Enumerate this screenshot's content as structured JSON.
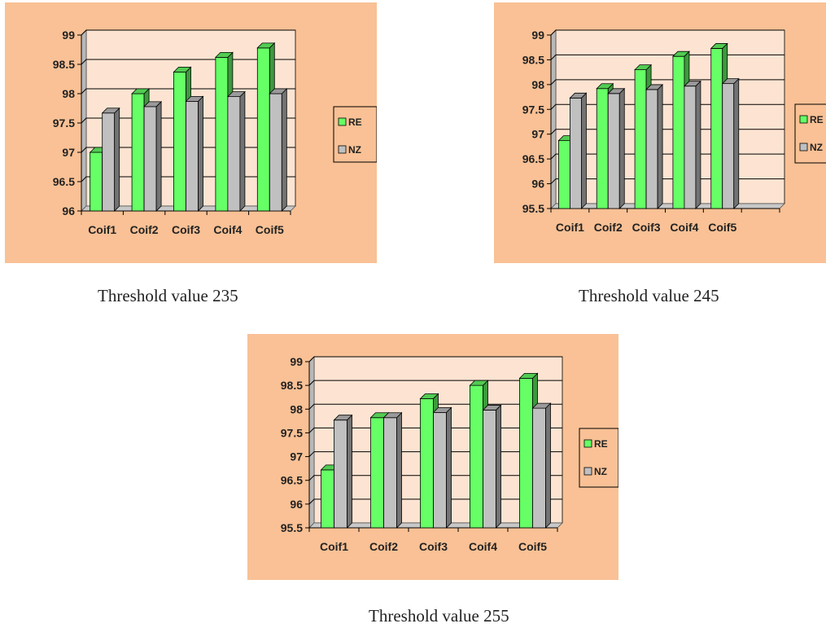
{
  "captions": [
    "Threshold value 235",
    "Threshold value 245",
    "Threshold value 255"
  ],
  "colors": {
    "panel_bg": "#f9c195",
    "plot_bg": "#fde4d2",
    "plot_side": "#b8b8b8",
    "plot_floor": "#c8c8c8",
    "grid": "#000000",
    "RE": "#66ff66",
    "NZ": "#c0c0c0"
  },
  "chart_data": [
    {
      "type": "bar",
      "categories": [
        "Coif1",
        "Coif2",
        "Coif3",
        "Coif4",
        "Coif5"
      ],
      "series": [
        {
          "name": "RE",
          "values": [
            97.0,
            98.0,
            98.37,
            98.62,
            98.78
          ]
        },
        {
          "name": "NZ",
          "values": [
            97.67,
            97.78,
            97.87,
            97.95,
            98.0
          ]
        }
      ],
      "ylim": [
        96,
        99
      ],
      "yticks": [
        "96",
        "96.5",
        "97",
        "97.5",
        "98",
        "98.5",
        "99"
      ],
      "grid": true,
      "legend": "right"
    },
    {
      "type": "bar",
      "categories": [
        "Coif1",
        "Coif2",
        "Coif3",
        "Coif4",
        "Coif5"
      ],
      "series": [
        {
          "name": "RE",
          "values": [
            96.87,
            97.92,
            98.3,
            98.57,
            98.73
          ]
        },
        {
          "name": "NZ",
          "values": [
            97.73,
            97.82,
            97.9,
            97.97,
            98.02
          ]
        }
      ],
      "ylim": [
        95.5,
        99
      ],
      "yticks": [
        "95.5",
        "96",
        "96.5",
        "97",
        "97.5",
        "98",
        "98.5",
        "99"
      ],
      "grid": true,
      "legend": "right"
    },
    {
      "type": "bar",
      "categories": [
        "Coif1",
        "Coif2",
        "Coif3",
        "Coif4",
        "Coif5"
      ],
      "series": [
        {
          "name": "RE",
          "values": [
            96.72,
            97.82,
            98.22,
            98.5,
            98.65
          ]
        },
        {
          "name": "NZ",
          "values": [
            97.77,
            97.82,
            97.93,
            97.98,
            98.02
          ]
        }
      ],
      "ylim": [
        95.5,
        99
      ],
      "yticks": [
        "95.5",
        "96",
        "96.5",
        "97",
        "97.5",
        "98",
        "98.5",
        "99"
      ],
      "grid": true,
      "legend": "right"
    }
  ]
}
